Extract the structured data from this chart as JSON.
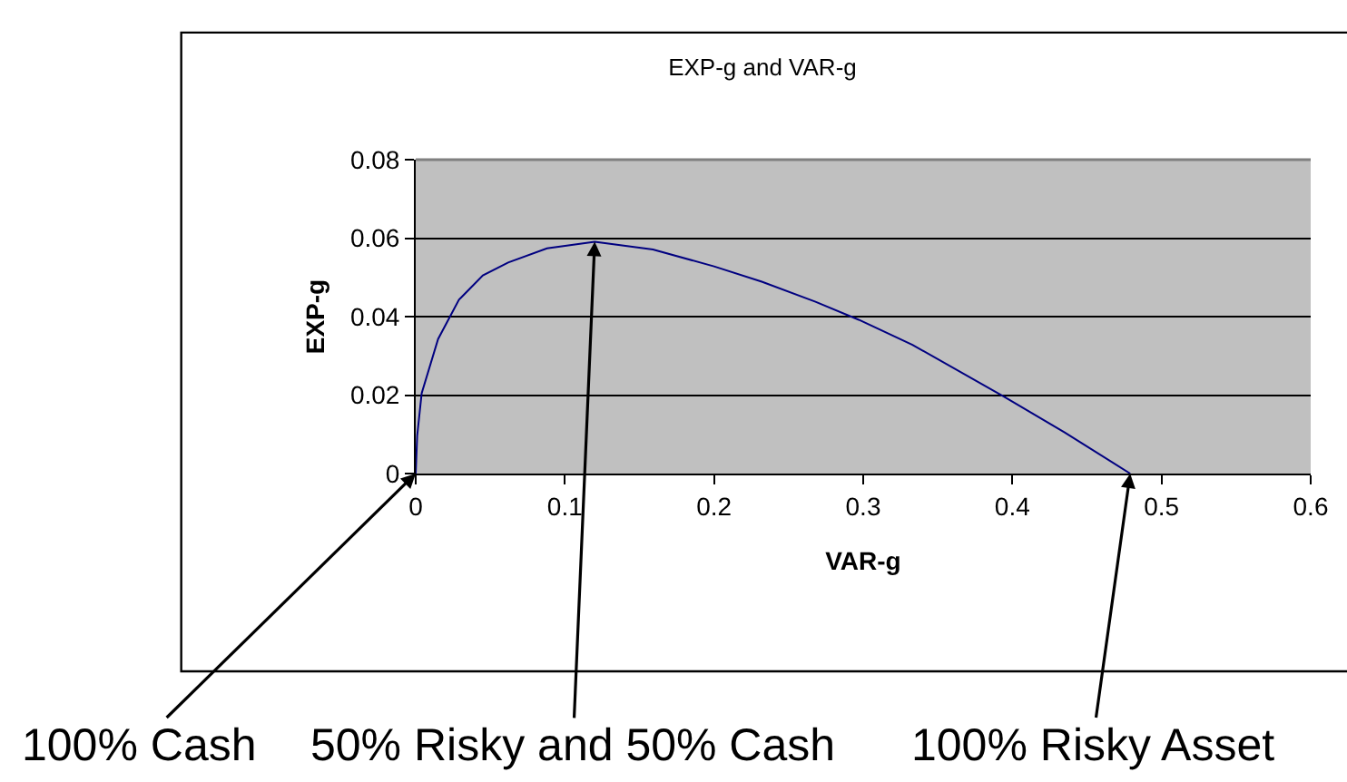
{
  "chart_data": {
    "type": "line",
    "title": "EXP-g and VAR-g",
    "xlabel": "VAR-g",
    "ylabel": "EXP-g",
    "x": [
      0,
      0.001,
      0.004,
      0.015,
      0.029,
      0.045,
      0.062,
      0.088,
      0.12,
      0.159,
      0.2,
      0.232,
      0.268,
      0.297,
      0.333,
      0.394,
      0.435,
      0.479
    ],
    "series": [
      {
        "color": "#000080",
        "values": [
          0,
          0.0097,
          0.0205,
          0.0343,
          0.0443,
          0.0505,
          0.0538,
          0.0574,
          0.0591,
          0.0571,
          0.0528,
          0.0489,
          0.0438,
          0.0392,
          0.0328,
          0.0197,
          0.0105,
          0
        ]
      }
    ],
    "xlim": [
      0,
      0.6
    ],
    "xticks": [
      0,
      0.1,
      0.2,
      0.3,
      0.4,
      0.5,
      0.6
    ],
    "ylim": [
      0,
      0.08
    ],
    "yticks": [
      0,
      0.02,
      0.04,
      0.06,
      0.08
    ],
    "grid": "y",
    "marker": "none",
    "line_style": "solid",
    "annotations": [
      {
        "text": "100% Cash",
        "x": 0,
        "y": 0
      },
      {
        "text": "50% Risky and 50% Cash",
        "x": 0.12,
        "y": 0.0591
      },
      {
        "text": "100% Risky Asset",
        "x": 0.479,
        "y": 0
      }
    ]
  }
}
